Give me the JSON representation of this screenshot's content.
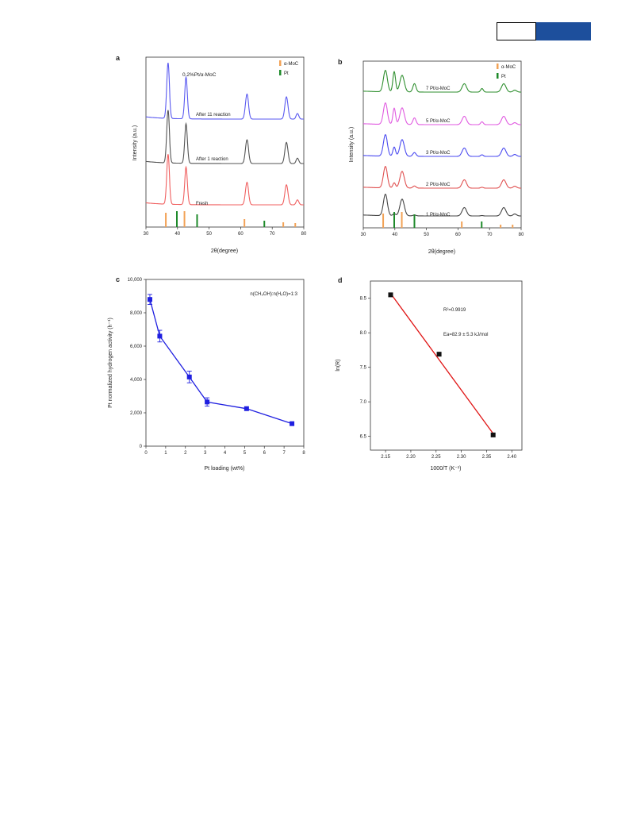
{
  "colors": {
    "header_blue": "#1d4f9c",
    "alpha_moc": "#f2a256",
    "pt": "#1e8a2a",
    "blue": "#1f1fe0",
    "red": "#e01515"
  },
  "chart_data": [
    {
      "panel": "a",
      "type": "line",
      "title": "0.2%Pt/α-MoC",
      "xlabel": "2θ(degree)",
      "ylabel": "Intensity (a.u.)",
      "xlim": [
        30,
        80
      ],
      "xticks": [
        30,
        40,
        50,
        60,
        70,
        80
      ],
      "legend": [
        "α-MoC",
        "Pt"
      ],
      "legend_position": "top-right",
      "peaks": [
        {
          "x": 37,
          "h": 1.0,
          "w": 0.6
        },
        {
          "x": 42.7,
          "h": 0.75,
          "w": 0.6
        },
        {
          "x": 62,
          "h": 0.45,
          "w": 0.7
        },
        {
          "x": 74.5,
          "h": 0.4,
          "w": 0.7
        },
        {
          "x": 78,
          "h": 0.1,
          "w": 0.6
        }
      ],
      "series": [
        {
          "label": "After 11 reaction",
          "color": "#5a5af0",
          "scale": 1.0
        },
        {
          "label": "After 1 reaction",
          "color": "#555555",
          "scale": 0.95
        },
        {
          "label": "Fresh",
          "color": "#f06060",
          "scale": 0.9
        }
      ],
      "ref_moc": [
        {
          "x": 36.3,
          "h": 0.9
        },
        {
          "x": 42.2,
          "h": 1.0
        },
        {
          "x": 61.2,
          "h": 0.5
        },
        {
          "x": 73.5,
          "h": 0.3
        },
        {
          "x": 77.3,
          "h": 0.25
        }
      ],
      "ref_pt": [
        {
          "x": 39.8,
          "h": 1.0
        },
        {
          "x": 46.2,
          "h": 0.8
        },
        {
          "x": 67.5,
          "h": 0.4
        }
      ]
    },
    {
      "panel": "b",
      "type": "line",
      "xlabel": "2θ(degree)",
      "ylabel": "Intensity (a.u.)",
      "xlim": [
        30,
        80
      ],
      "xticks": [
        30,
        40,
        50,
        60,
        70,
        80
      ],
      "legend": [
        "α-MoC",
        "Pt"
      ],
      "legend_position": "top-right",
      "series": [
        {
          "label": "7 Pt/α-MoC",
          "color": "#2f8f2f"
        },
        {
          "label": "5 Pt/α-MoC",
          "color": "#e05ae0"
        },
        {
          "label": "3 Pt/α-MoC",
          "color": "#4a4af0"
        },
        {
          "label": "2 Pt/α-MoC",
          "color": "#e05050"
        },
        {
          "label": "1 Pt/α-MoC",
          "color": "#444444"
        }
      ],
      "ref_moc": [
        {
          "x": 36.3,
          "h": 0.9
        },
        {
          "x": 42.2,
          "h": 1.0
        },
        {
          "x": 61.2,
          "h": 0.4
        },
        {
          "x": 73.5,
          "h": 0.2
        },
        {
          "x": 77.3,
          "h": 0.2
        }
      ],
      "ref_pt": [
        {
          "x": 39.8,
          "h": 1.0
        },
        {
          "x": 46.2,
          "h": 0.85
        },
        {
          "x": 67.5,
          "h": 0.4
        }
      ]
    },
    {
      "panel": "c",
      "type": "scatter",
      "annotation": "n(CH₃OH):n(H₂O)=1:3",
      "xlabel": "Pt loading (wt%)",
      "ylabel": "Pt normalized hydrogen activity (h⁻¹)",
      "xlim": [
        0,
        8
      ],
      "ylim": [
        0,
        10000
      ],
      "xticks": [
        0,
        1,
        2,
        3,
        4,
        5,
        6,
        7,
        8
      ],
      "yticks": [
        0,
        2000,
        4000,
        6000,
        8000,
        10000
      ],
      "ytick_labels": [
        "0",
        "2,000",
        "4,000",
        "6,000",
        "8,000",
        "10,000"
      ],
      "x": [
        0.2,
        0.7,
        2.2,
        3.1,
        5.1,
        7.4
      ],
      "y": [
        8800,
        6600,
        4150,
        2650,
        2250,
        1350
      ],
      "err": [
        300,
        350,
        350,
        250,
        0,
        0
      ]
    },
    {
      "panel": "d",
      "type": "scatter",
      "xlabel": "1000/T (K⁻¹)",
      "ylabel": "ln(R)",
      "xlim": [
        2.12,
        2.42
      ],
      "ylim": [
        6.3,
        8.75
      ],
      "xticks": [
        2.15,
        2.2,
        2.25,
        2.3,
        2.35,
        2.4
      ],
      "xtick_labels": [
        "2.15",
        "2.20",
        "2.25",
        "2.30",
        "2.35",
        "2.40"
      ],
      "yticks": [
        6.5,
        7.0,
        7.5,
        8.0,
        8.5
      ],
      "ytick_labels": [
        "6.5",
        "7.0",
        "7.5",
        "8.0",
        "8.5"
      ],
      "x": [
        2.16,
        2.256,
        2.363
      ],
      "y": [
        8.55,
        7.69,
        6.52
      ],
      "fit": {
        "x": [
          2.16,
          2.363
        ],
        "y": [
          8.57,
          6.54
        ]
      },
      "annotations": [
        "R²=0.9919",
        "Ea=82.9 ± 5.3 kJ/mol"
      ]
    }
  ]
}
